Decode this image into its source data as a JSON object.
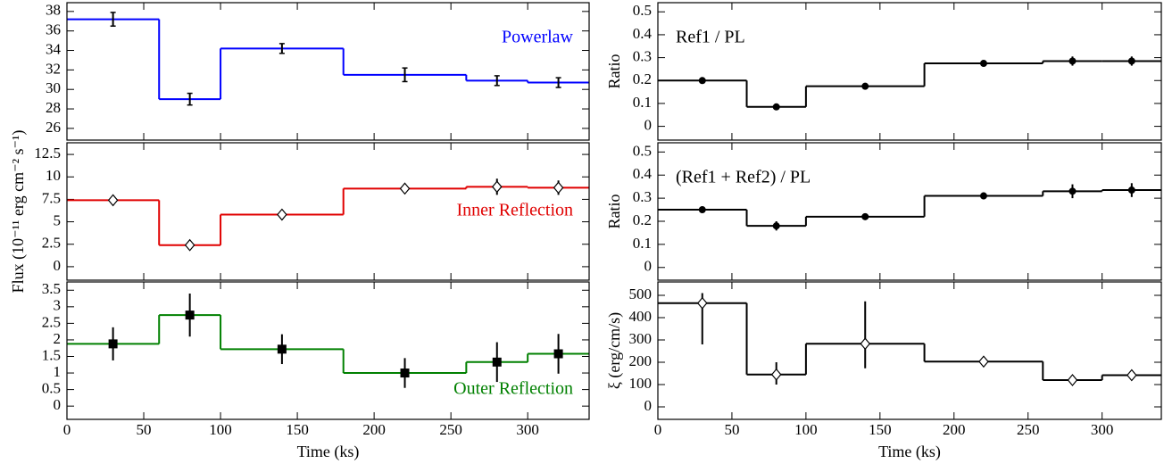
{
  "chart_data": [
    {
      "type": "step",
      "x": [
        30,
        80,
        140,
        220,
        280,
        320
      ],
      "bins": [
        0,
        60,
        100,
        180,
        260,
        300,
        340
      ],
      "values": [
        37.2,
        29.0,
        34.2,
        31.5,
        30.9,
        30.7
      ],
      "errors": [
        [
          0.7,
          0.7
        ],
        [
          0.6,
          0.6
        ],
        [
          0.5,
          0.5
        ],
        [
          0.7,
          0.7
        ],
        [
          0.5,
          0.5
        ],
        [
          0.5,
          0.5
        ]
      ],
      "color": "#0000ff",
      "marker": "none",
      "annotation": "Powerlaw",
      "annotation_loc": "upper right",
      "xlim": [
        0,
        340
      ],
      "xticks": [
        0,
        50,
        100,
        150,
        200,
        250,
        300
      ],
      "ylim": [
        24.8,
        38.9
      ],
      "yticks": [
        26,
        28,
        30,
        32,
        34,
        36,
        38
      ]
    },
    {
      "type": "step",
      "x": [
        30,
        80,
        140,
        220,
        280,
        320
      ],
      "bins": [
        0,
        60,
        100,
        180,
        260,
        300,
        340
      ],
      "values": [
        7.4,
        2.4,
        5.8,
        8.7,
        8.9,
        8.8
      ],
      "errors": [
        [
          0.4,
          0.4
        ],
        [
          0.4,
          0.4
        ],
        [
          0.3,
          0.3
        ],
        [
          0.4,
          0.4
        ],
        [
          0.9,
          0.9
        ],
        [
          0.8,
          0.8
        ]
      ],
      "color": "#e00000",
      "marker": "diamond-open",
      "annotation": "Inner Reflection",
      "annotation_loc": "center right",
      "ylabel": "Flux (10⁻¹¹ erg cm⁻² s⁻¹)",
      "xlim": [
        0,
        340
      ],
      "xticks": [
        0,
        50,
        100,
        150,
        200,
        250,
        300
      ],
      "ylim": [
        -1.5,
        13.8
      ],
      "yticks": [
        0,
        2.5,
        5,
        7.5,
        10,
        12.5
      ]
    },
    {
      "type": "step",
      "x": [
        30,
        80,
        140,
        220,
        280,
        320
      ],
      "bins": [
        0,
        60,
        100,
        180,
        260,
        300,
        340
      ],
      "values": [
        1.88,
        2.75,
        1.72,
        1.0,
        1.33,
        1.58
      ],
      "errors": [
        [
          0.5,
          0.5
        ],
        [
          0.65,
          0.65
        ],
        [
          0.45,
          0.45
        ],
        [
          0.45,
          0.45
        ],
        [
          0.6,
          0.6
        ],
        [
          0.6,
          0.6
        ]
      ],
      "color": "#008000",
      "marker": "square",
      "annotation": "Outer Reflection",
      "annotation_loc": "lower right",
      "xlabel": "Time (ks)",
      "xlim": [
        0,
        340
      ],
      "xticks": [
        0,
        50,
        100,
        150,
        200,
        250,
        300
      ],
      "ylim": [
        -0.4,
        3.75
      ],
      "yticks": [
        0,
        0.5,
        1,
        1.5,
        2,
        2.5,
        3,
        3.5
      ]
    },
    {
      "type": "step",
      "x": [
        30,
        80,
        140,
        220,
        280,
        320
      ],
      "bins": [
        0,
        60,
        100,
        180,
        260,
        300,
        340
      ],
      "values": [
        0.2,
        0.085,
        0.175,
        0.275,
        0.285,
        0.285
      ],
      "errors": [
        [
          0.005,
          0.005
        ],
        [
          0.01,
          0.01
        ],
        [
          0.005,
          0.005
        ],
        [
          0.005,
          0.005
        ],
        [
          0.02,
          0.02
        ],
        [
          0.02,
          0.02
        ]
      ],
      "color": "#000000",
      "marker": "circle",
      "annotation": "Ref1 / PL",
      "annotation_loc": "upper left",
      "ylabel": "Ratio",
      "xlim": [
        0,
        340
      ],
      "xticks": [
        0,
        50,
        100,
        150,
        200,
        250,
        300
      ],
      "ylim": [
        -0.06,
        0.54
      ],
      "yticks": [
        0,
        0.1,
        0.2,
        0.3,
        0.4,
        0.5
      ]
    },
    {
      "type": "step",
      "x": [
        30,
        80,
        140,
        220,
        280,
        320
      ],
      "bins": [
        0,
        60,
        100,
        180,
        260,
        300,
        340
      ],
      "values": [
        0.25,
        0.18,
        0.22,
        0.31,
        0.33,
        0.335
      ],
      "errors": [
        [
          0.01,
          0.01
        ],
        [
          0.02,
          0.02
        ],
        [
          0.01,
          0.01
        ],
        [
          0.015,
          0.015
        ],
        [
          0.03,
          0.03
        ],
        [
          0.03,
          0.03
        ]
      ],
      "color": "#000000",
      "marker": "circle",
      "annotation": "(Ref1 + Ref2) / PL",
      "annotation_loc": "upper left",
      "ylabel": "Ratio",
      "xlim": [
        0,
        340
      ],
      "xticks": [
        0,
        50,
        100,
        150,
        200,
        250,
        300
      ],
      "ylim": [
        -0.055,
        0.54
      ],
      "yticks": [
        0,
        0.1,
        0.2,
        0.3,
        0.4,
        0.5
      ]
    },
    {
      "type": "step",
      "x": [
        30,
        80,
        140,
        220,
        280,
        320
      ],
      "bins": [
        0,
        60,
        100,
        180,
        260,
        300,
        340
      ],
      "values": [
        465,
        145,
        283,
        203,
        120,
        142
      ],
      "errors": [
        [
          185,
          45
        ],
        [
          45,
          55
        ],
        [
          110,
          190
        ],
        [
          10,
          10
        ],
        [
          10,
          10
        ],
        [
          15,
          15
        ]
      ],
      "color": "#000000",
      "marker": "diamond-open",
      "ylabel": "ξ (erg/cm/s)",
      "xlabel": "Time (ks)",
      "xlim": [
        0,
        340
      ],
      "xticks": [
        0,
        50,
        100,
        150,
        200,
        250,
        300
      ],
      "ylim": [
        -56,
        560
      ],
      "yticks": [
        0,
        100,
        200,
        300,
        400,
        500
      ]
    }
  ]
}
